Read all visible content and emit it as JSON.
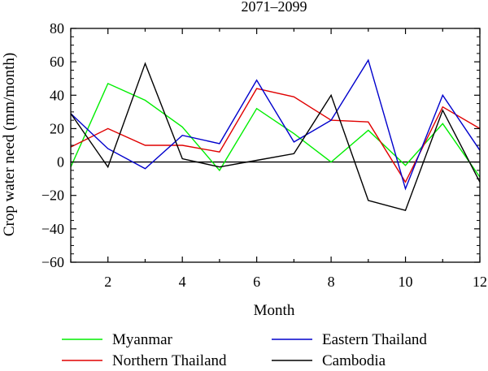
{
  "chart_data": {
    "type": "line",
    "title": "2071–2099",
    "xlabel": "Month",
    "ylabel": "Crop water need (mm/month)",
    "xlim": [
      1,
      12
    ],
    "ylim": [
      -60,
      80
    ],
    "xticks": [
      2,
      4,
      6,
      8,
      10,
      12
    ],
    "yticks": [
      -60,
      -40,
      -20,
      0,
      20,
      40,
      60,
      80
    ],
    "ytick_labels": [
      "−60",
      "−40",
      "−20",
      "0",
      "20",
      "40",
      "60",
      "80"
    ],
    "zero_line": true,
    "grid": false,
    "legend_position": "bottom",
    "x": [
      1,
      2,
      3,
      4,
      5,
      6,
      7,
      8,
      9,
      10,
      11,
      12
    ],
    "series": [
      {
        "name": "Myanmar",
        "color": "#00ee00",
        "values": [
          -3,
          47,
          37,
          21,
          -5,
          32,
          17,
          0,
          19,
          -2,
          23,
          -9
        ]
      },
      {
        "name": "Northern Thailand",
        "color": "#e00000",
        "values": [
          9,
          20,
          10,
          10,
          6,
          44,
          39,
          25,
          24,
          -12,
          33,
          20
        ]
      },
      {
        "name": "Eastern Thailand",
        "color": "#0000cc",
        "values": [
          29,
          8,
          -4,
          16,
          11,
          49,
          12,
          25,
          61,
          -16,
          40,
          7
        ]
      },
      {
        "name": "Cambodia",
        "color": "#000000",
        "values": [
          29,
          -3,
          59,
          2,
          -3,
          1,
          5,
          40,
          -23,
          -29,
          31,
          -12
        ]
      }
    ]
  }
}
